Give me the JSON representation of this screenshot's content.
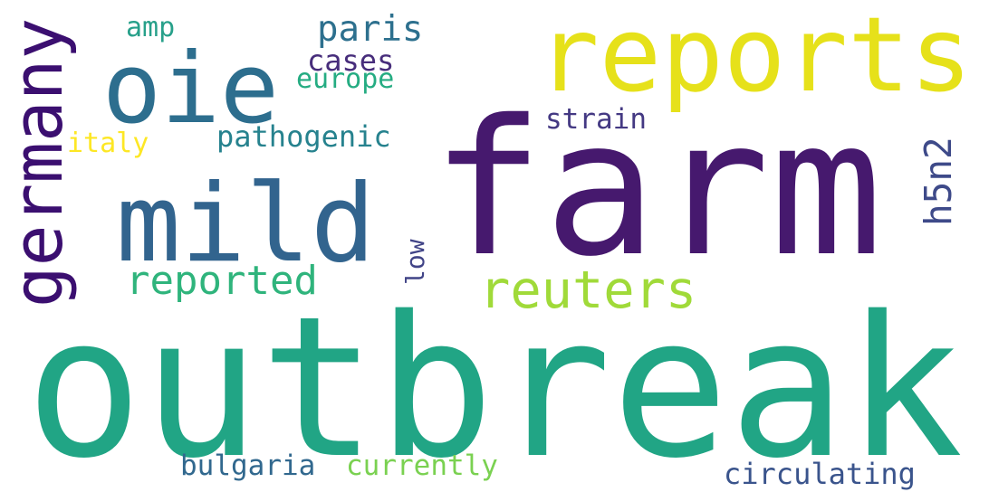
{
  "words": [
    {
      "text": "outbreak",
      "color": "#21a585"
    },
    {
      "text": "farm",
      "color": "#46196e"
    },
    {
      "text": "reports",
      "color": "#e6e11a"
    },
    {
      "text": "oie",
      "color": "#2d6e8e"
    },
    {
      "text": "mild",
      "color": "#32648e"
    },
    {
      "text": "germany",
      "color": "#3b0f70"
    },
    {
      "text": "paris",
      "color": "#2d708e"
    },
    {
      "text": "cases",
      "color": "#472d7b"
    },
    {
      "text": "europe",
      "color": "#25ac82"
    },
    {
      "text": "amp",
      "color": "#27a08a"
    },
    {
      "text": "strain",
      "color": "#443983"
    },
    {
      "text": "pathogenic",
      "color": "#26828e"
    },
    {
      "text": "italy",
      "color": "#fde725"
    },
    {
      "text": "h5n2",
      "color": "#3e4a89"
    },
    {
      "text": "low",
      "color": "#414487"
    },
    {
      "text": "reported",
      "color": "#2fb47c"
    },
    {
      "text": "reuters",
      "color": "#a0da39"
    },
    {
      "text": "bulgaria",
      "color": "#31688e"
    },
    {
      "text": "currently",
      "color": "#7ad151"
    },
    {
      "text": "circulating",
      "color": "#3a548c"
    }
  ]
}
